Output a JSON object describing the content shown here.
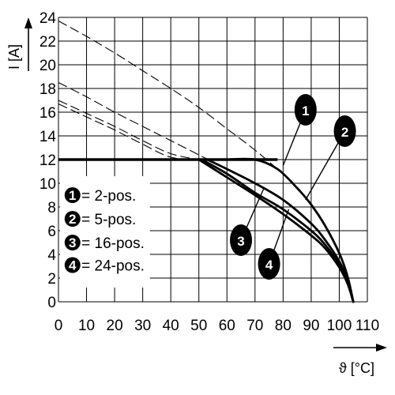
{
  "chart_data": {
    "type": "line",
    "title": "",
    "xlabel": "ϑ [°C]",
    "ylabel": "I [A]",
    "xlim": [
      0,
      110
    ],
    "ylim": [
      0,
      24
    ],
    "x_ticks": [
      "0",
      "10",
      "20",
      "30",
      "40",
      "50",
      "60",
      "70",
      "80",
      "90",
      "100",
      "110"
    ],
    "y_ticks": [
      "0",
      "2",
      "4",
      "6",
      "8",
      "10",
      "12",
      "14",
      "16",
      "18",
      "20",
      "22",
      "24"
    ],
    "grid": true,
    "legend_position": "bottom-left",
    "legend": [
      {
        "badge": "1",
        "label": "= 2-pos."
      },
      {
        "badge": "2",
        "label": "= 5-pos."
      },
      {
        "badge": "3",
        "label": "= 16-pos."
      },
      {
        "badge": "4",
        "label": "= 24-pos."
      }
    ],
    "limit_line": {
      "y": 12,
      "x": [
        0,
        78
      ]
    },
    "series": [
      {
        "badge": "1",
        "dashed_x": [
          0,
          10,
          20,
          30,
          40,
          50,
          60,
          70,
          78
        ],
        "dashed_y": [
          23.7,
          22.4,
          21.0,
          19.5,
          18.0,
          16.4,
          14.6,
          12.8,
          11.2
        ],
        "solid_x": [
          60,
          70,
          78,
          85,
          90,
          95,
          100,
          103,
          105
        ],
        "solid_y": [
          12.0,
          12.0,
          11.2,
          9.6,
          8.2,
          6.4,
          4.1,
          2.1,
          0
        ],
        "label_x": 88,
        "label_y": 16.2
      },
      {
        "badge": "2",
        "dashed_x": [
          0,
          10,
          20,
          30,
          40,
          50,
          60
        ],
        "dashed_y": [
          18.5,
          17.3,
          16.0,
          14.8,
          13.6,
          12.4,
          11.2
        ],
        "solid_x": [
          53,
          60,
          70,
          80,
          90,
          95,
          100,
          103,
          105
        ],
        "solid_y": [
          12.0,
          11.2,
          10.0,
          8.6,
          6.6,
          5.2,
          3.4,
          1.8,
          0
        ],
        "label_x": 102,
        "label_y": 14.4
      },
      {
        "badge": "3",
        "dashed_x": [
          0,
          10,
          20,
          30,
          40,
          50
        ],
        "dashed_y": [
          17.0,
          15.9,
          14.8,
          13.6,
          12.5,
          12.0
        ],
        "solid_x": [
          51,
          60,
          70,
          80,
          90,
          95,
          100,
          103,
          105
        ],
        "solid_y": [
          12.0,
          10.8,
          9.2,
          7.8,
          6.0,
          4.8,
          3.1,
          1.6,
          0
        ],
        "label_x": 65,
        "label_y": 5.2
      },
      {
        "badge": "4",
        "dashed_x": [
          0,
          10,
          20,
          30,
          40,
          50
        ],
        "dashed_y": [
          16.7,
          15.6,
          14.5,
          13.3,
          12.2,
          12.0
        ],
        "solid_x": [
          50,
          60,
          70,
          80,
          90,
          95,
          100,
          103,
          105
        ],
        "solid_y": [
          12.0,
          10.5,
          9.0,
          7.4,
          5.6,
          4.5,
          2.9,
          1.5,
          0
        ],
        "label_x": 75,
        "label_y": 3.2
      }
    ]
  }
}
